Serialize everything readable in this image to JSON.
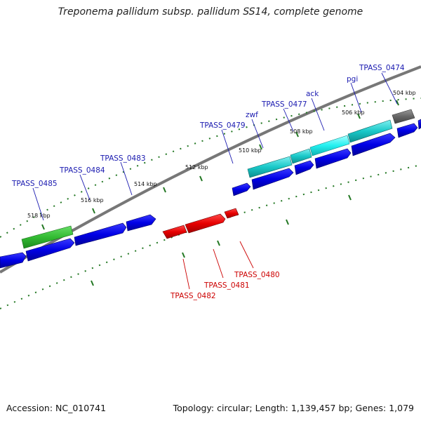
{
  "title": "Treponema pallidum subsp. pallidum SS14, complete genome",
  "footer": {
    "accession": "Accession: NC_010741",
    "summary": "Topology: circular; Length: 1,139,457 bp; Genes: 1,079"
  },
  "colors": {
    "forward_cds": "#0000e6",
    "reverse_cds": "#e60000",
    "highlight_green": "#33bb33",
    "highlight_cyan": "#19c8c8",
    "highlight_gray": "#666666",
    "backbone": "#777777",
    "tick": "#227722",
    "forward_label": "#1a1ab0",
    "reverse_label": "#cc0000"
  },
  "kbp_labels": [
    "504 kbp",
    "506 kbp",
    "508 kbp",
    "510 kbp",
    "512 kbp",
    "514 kbp",
    "516 kbp",
    "518 kbp"
  ],
  "forward_gene_labels": [
    "TPASS_0474",
    "pgi",
    "ack",
    "TPASS_0477",
    "zwf",
    "TPASS_0479",
    "TPASS_0483",
    "TPASS_0484",
    "TPASS_0485"
  ],
  "reverse_gene_labels": [
    "TPASS_0480",
    "TPASS_0481",
    "TPASS_0482"
  ]
}
